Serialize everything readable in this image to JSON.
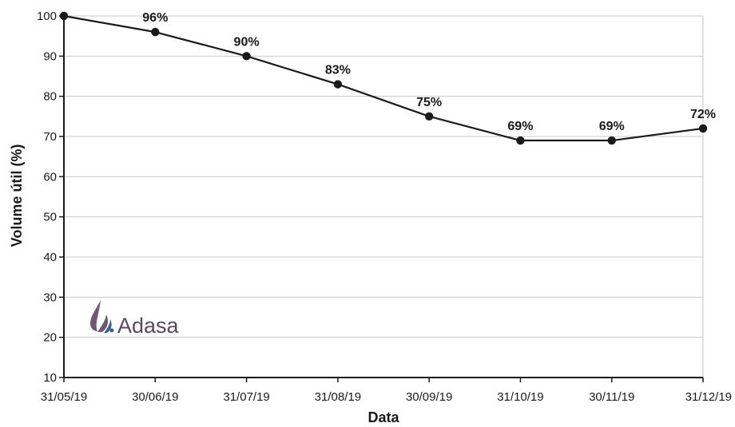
{
  "chart_data": {
    "type": "line",
    "x": [
      "31/05/19",
      "30/06/19",
      "31/07/19",
      "31/08/19",
      "30/09/19",
      "31/10/19",
      "30/11/19",
      "31/12/19"
    ],
    "series": [
      {
        "values": [
          100,
          96,
          90,
          83,
          75,
          69,
          69,
          72
        ],
        "labels": [
          "",
          "96%",
          "90%",
          "83%",
          "75%",
          "69%",
          "69%",
          "72%"
        ]
      }
    ],
    "xlabel": "Data",
    "ylabel": "Volume útil (%)",
    "ylim": [
      10,
      100
    ],
    "yticks": [
      10,
      20,
      30,
      40,
      50,
      60,
      70,
      80,
      90,
      100
    ],
    "grid": true,
    "colors": {
      "line": "#1a1a1a",
      "grid": "#c8c8c8",
      "logo_drop": "#6e5a6e",
      "logo_wave": "#3d5f8a"
    }
  },
  "logo": {
    "text": "Adasa"
  }
}
